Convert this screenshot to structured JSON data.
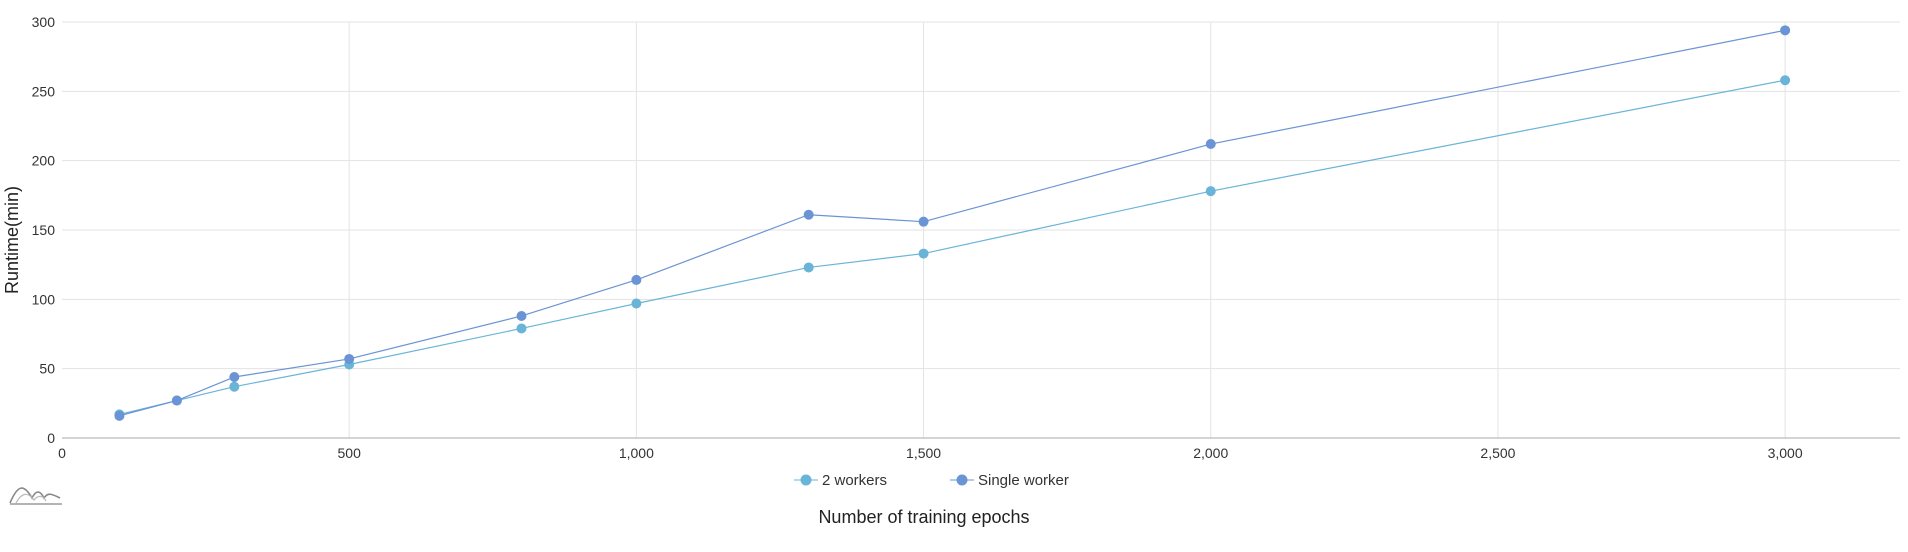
{
  "chart_data": {
    "type": "line",
    "xlabel": "Number of training epochs",
    "ylabel": "Runtime(min)",
    "xlim": [
      0,
      3200
    ],
    "ylim": [
      0,
      300
    ],
    "x_ticks": [
      0,
      500,
      1000,
      1500,
      2000,
      2500,
      3000
    ],
    "x_tick_labels": [
      "0",
      "500",
      "1,000",
      "1,500",
      "2,000",
      "2,500",
      "3,000"
    ],
    "y_ticks": [
      0,
      50,
      100,
      150,
      200,
      250,
      300
    ],
    "y_tick_labels": [
      "0",
      "50",
      "100",
      "150",
      "200",
      "250",
      "300"
    ],
    "grid": true,
    "legend_position": "bottom-center",
    "x": [
      100,
      200,
      300,
      500,
      800,
      1000,
      1300,
      1500,
      2000,
      3000
    ],
    "series": [
      {
        "name": "2 workers",
        "color": "#6ab4d8",
        "values": [
          17,
          27,
          37,
          53,
          79,
          97,
          123,
          133,
          178,
          258
        ]
      },
      {
        "name": "Single worker",
        "color": "#6a94d4",
        "values": [
          16,
          27,
          44,
          57,
          88,
          114,
          161,
          156,
          212,
          294
        ]
      }
    ]
  },
  "icons": {
    "logo": "amcharts-logo-icon"
  }
}
